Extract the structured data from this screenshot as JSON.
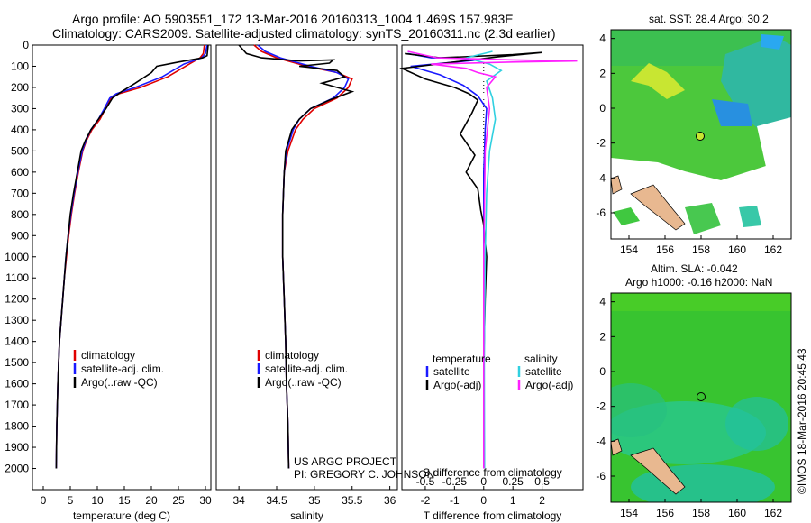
{
  "header": {
    "title_line1": "Argo profile: AO 5903551_172 13-Mar-2016 20160313_1004 1.469S 157.983E",
    "title_line2": "Climatology: CARS2009. Satellite-adjusted climatology: synTS_20160311.nc (2.3d earlier)"
  },
  "credit": {
    "line1": "US ARGO PROJECT",
    "line2": "PI: GREGORY C. JOHNSON"
  },
  "side_label": "©IMOS 18-Mar-2016 20:45:43",
  "colors": {
    "climatology": "#e00000",
    "satellite": "#1a1aff",
    "argo": "#000000",
    "sat_cyan": "#30d0e0",
    "argo_magenta": "#ff20ff"
  },
  "chart_data": [
    {
      "type": "line",
      "title": "",
      "xlabel": "temperature (deg C)",
      "ylabel": "",
      "xlim": [
        -2,
        31
      ],
      "ylim": [
        2100,
        0
      ],
      "xticks": [
        0,
        5,
        10,
        15,
        20,
        25,
        30
      ],
      "yticks": [
        0,
        100,
        200,
        300,
        400,
        500,
        600,
        700,
        800,
        900,
        1000,
        1100,
        1200,
        1300,
        1400,
        1500,
        1600,
        1700,
        1800,
        1900,
        2000
      ],
      "legend": [
        "climatology",
        "satellite-adj. clim.",
        "Argo(..raw -QC)"
      ],
      "series": [
        {
          "name": "climatology",
          "color": "#e00000",
          "points": [
            [
              29.8,
              0
            ],
            [
              29.6,
              40
            ],
            [
              29.0,
              60
            ],
            [
              27.0,
              90
            ],
            [
              23.0,
              150
            ],
            [
              18.0,
              200
            ],
            [
              14.0,
              230
            ],
            [
              12.5,
              250
            ],
            [
              11.5,
              300
            ],
            [
              10.5,
              350
            ],
            [
              9.0,
              400
            ],
            [
              8.0,
              450
            ],
            [
              7.3,
              500
            ],
            [
              6.5,
              600
            ],
            [
              5.8,
              700
            ],
            [
              5.2,
              800
            ],
            [
              4.7,
              900
            ],
            [
              4.3,
              1000
            ],
            [
              3.9,
              1100
            ],
            [
              3.6,
              1200
            ],
            [
              3.3,
              1300
            ],
            [
              3.0,
              1400
            ],
            [
              2.85,
              1500
            ],
            [
              2.7,
              1600
            ],
            [
              2.6,
              1700
            ],
            [
              2.5,
              1800
            ],
            [
              2.45,
              1900
            ],
            [
              2.4,
              2000
            ]
          ]
        },
        {
          "name": "satellite-adj. clim.",
          "color": "#1a1aff",
          "points": [
            [
              30.3,
              0
            ],
            [
              30.0,
              40
            ],
            [
              29.3,
              60
            ],
            [
              26.0,
              90
            ],
            [
              22.0,
              150
            ],
            [
              17.0,
              200
            ],
            [
              13.5,
              230
            ],
            [
              12.3,
              250
            ],
            [
              11.3,
              300
            ],
            [
              10.2,
              350
            ],
            [
              8.8,
              400
            ],
            [
              7.9,
              450
            ],
            [
              7.2,
              500
            ],
            [
              6.4,
              600
            ],
            [
              5.7,
              700
            ],
            [
              5.1,
              800
            ],
            [
              4.6,
              900
            ],
            [
              4.2,
              1000
            ],
            [
              3.9,
              1100
            ],
            [
              3.6,
              1200
            ],
            [
              3.3,
              1300
            ],
            [
              3.0,
              1400
            ],
            [
              2.85,
              1500
            ],
            [
              2.7,
              1600
            ],
            [
              2.6,
              1700
            ],
            [
              2.5,
              1800
            ],
            [
              2.45,
              1900
            ],
            [
              2.4,
              2000
            ]
          ]
        },
        {
          "name": "Argo(..raw -QC)",
          "color": "#000000",
          "points": [
            [
              30.5,
              0
            ],
            [
              30.3,
              50
            ],
            [
              29.5,
              60
            ],
            [
              25.0,
              80
            ],
            [
              21.0,
              100
            ],
            [
              20.0,
              130
            ],
            [
              17.0,
              180
            ],
            [
              14.5,
              220
            ],
            [
              12.8,
              250
            ],
            [
              11.6,
              300
            ],
            [
              10.2,
              350
            ],
            [
              8.8,
              400
            ],
            [
              7.8,
              450
            ],
            [
              7.0,
              500
            ],
            [
              6.3,
              600
            ],
            [
              5.6,
              700
            ],
            [
              5.0,
              800
            ],
            [
              4.6,
              900
            ],
            [
              4.2,
              1000
            ],
            [
              3.9,
              1100
            ],
            [
              3.6,
              1200
            ],
            [
              3.3,
              1300
            ],
            [
              3.0,
              1400
            ],
            [
              2.85,
              1500
            ],
            [
              2.7,
              1600
            ],
            [
              2.6,
              1700
            ],
            [
              2.5,
              1800
            ],
            [
              2.45,
              1900
            ],
            [
              2.4,
              2000
            ]
          ]
        }
      ]
    },
    {
      "type": "line",
      "title": "",
      "xlabel": "salinity",
      "ylabel": "",
      "xlim": [
        33.7,
        36.1
      ],
      "ylim": [
        2100,
        0
      ],
      "xticks": [
        34,
        34.5,
        35,
        35.5,
        36
      ],
      "legend": [
        "climatology",
        "satellite-adj. clim.",
        "Argo(..raw -QC)"
      ],
      "series": [
        {
          "name": "climatology",
          "color": "#e00000",
          "points": [
            [
              34.2,
              0
            ],
            [
              34.3,
              30
            ],
            [
              34.5,
              60
            ],
            [
              34.9,
              100
            ],
            [
              35.3,
              130
            ],
            [
              35.5,
              160
            ],
            [
              35.45,
              200
            ],
            [
              35.3,
              250
            ],
            [
              35.0,
              300
            ],
            [
              34.85,
              350
            ],
            [
              34.75,
              400
            ],
            [
              34.65,
              500
            ],
            [
              34.6,
              600
            ],
            [
              34.58,
              800
            ],
            [
              34.58,
              1000
            ],
            [
              34.6,
              1200
            ],
            [
              34.62,
              1400
            ],
            [
              34.63,
              1600
            ],
            [
              34.65,
              1800
            ],
            [
              34.66,
              2000
            ]
          ]
        },
        {
          "name": "satellite-adj. clim.",
          "color": "#1a1aff",
          "points": [
            [
              34.25,
              0
            ],
            [
              34.35,
              30
            ],
            [
              34.55,
              60
            ],
            [
              34.95,
              100
            ],
            [
              35.3,
              130
            ],
            [
              35.45,
              160
            ],
            [
              35.4,
              200
            ],
            [
              35.25,
              250
            ],
            [
              34.95,
              300
            ],
            [
              34.8,
              350
            ],
            [
              34.72,
              400
            ],
            [
              34.63,
              500
            ],
            [
              34.6,
              600
            ],
            [
              34.58,
              800
            ],
            [
              34.58,
              1000
            ],
            [
              34.6,
              1200
            ],
            [
              34.62,
              1400
            ],
            [
              34.63,
              1600
            ],
            [
              34.65,
              1800
            ],
            [
              34.66,
              2000
            ]
          ]
        },
        {
          "name": "Argo(..raw -QC)",
          "color": "#000000",
          "points": [
            [
              34.0,
              0
            ],
            [
              34.1,
              40
            ],
            [
              34.3,
              60
            ],
            [
              34.8,
              75
            ],
            [
              35.25,
              70
            ],
            [
              35.2,
              85
            ],
            [
              34.8,
              100
            ],
            [
              35.3,
              120
            ],
            [
              35.4,
              150
            ],
            [
              35.1,
              180
            ],
            [
              35.5,
              220
            ],
            [
              35.2,
              260
            ],
            [
              34.95,
              300
            ],
            [
              34.8,
              350
            ],
            [
              34.7,
              400
            ],
            [
              34.62,
              500
            ],
            [
              34.6,
              600
            ],
            [
              34.58,
              800
            ],
            [
              34.58,
              1000
            ],
            [
              34.6,
              1200
            ],
            [
              34.62,
              1400
            ],
            [
              34.63,
              1600
            ],
            [
              34.65,
              1800
            ],
            [
              34.66,
              2000
            ]
          ]
        }
      ]
    },
    {
      "type": "line",
      "title": "",
      "xlabel": "T difference from climatology",
      "xlabel_top": "S difference from climatology",
      "ylabel": "",
      "xlim": [
        -2.8,
        3.4
      ],
      "ylim": [
        2100,
        0
      ],
      "xticks": [
        -2,
        -1,
        0,
        1,
        2
      ],
      "xticks_s": [
        -0.5,
        -0.25,
        0,
        0.25,
        0.5
      ],
      "xticks_s_labels": [
        "-0.5",
        "-0.25",
        "0",
        "0.25",
        "0.5"
      ],
      "legend_headers": [
        "temperature",
        "salinity"
      ],
      "legend": [
        "satellite",
        "Argo(-adj)",
        "satellite",
        "Argo(-adj)"
      ],
      "series": [
        {
          "name": "T satellite",
          "color": "#1a1aff",
          "points": [
            [
              -2.6,
              40
            ],
            [
              -1.8,
              60
            ],
            [
              -1.0,
              60
            ],
            [
              -0.2,
              70
            ],
            [
              -2.5,
              100
            ],
            [
              -1.5,
              140
            ],
            [
              -0.7,
              190
            ],
            [
              -0.2,
              240
            ],
            [
              0.1,
              300
            ],
            [
              0.05,
              400
            ],
            [
              0.0,
              600
            ],
            [
              0.0,
              1000
            ],
            [
              0.0,
              1500
            ],
            [
              0.02,
              2000
            ]
          ]
        },
        {
          "name": "T Argo(-adj)",
          "color": "#000000",
          "points": [
            [
              -2.7,
              40
            ],
            [
              -1.5,
              60
            ],
            [
              1.0,
              45
            ],
            [
              2.0,
              35
            ],
            [
              0.5,
              55
            ],
            [
              -2.8,
              110
            ],
            [
              -2.0,
              160
            ],
            [
              -1.0,
              200
            ],
            [
              -0.5,
              230
            ],
            [
              -0.2,
              260
            ],
            [
              -0.4,
              320
            ],
            [
              -0.8,
              420
            ],
            [
              -0.3,
              520
            ],
            [
              -0.6,
              600
            ],
            [
              -0.2,
              680
            ],
            [
              -0.1,
              780
            ],
            [
              0.0,
              850
            ],
            [
              0.1,
              1000
            ],
            [
              0.05,
              1200
            ],
            [
              0.0,
              1500
            ],
            [
              0.02,
              2000
            ]
          ]
        },
        {
          "name": "S satellite",
          "color": "#30d0e0",
          "points": [
            [
              0.3,
              30
            ],
            [
              -0.6,
              60
            ],
            [
              0.2,
              90
            ],
            [
              0.6,
              120
            ],
            [
              0.1,
              170
            ],
            [
              0.3,
              250
            ],
            [
              0.4,
              350
            ],
            [
              0.2,
              500
            ],
            [
              0.1,
              700
            ],
            [
              0.05,
              1000
            ],
            [
              0.02,
              1500
            ],
            [
              0.03,
              2000
            ]
          ]
        },
        {
          "name": "S Argo(-adj)",
          "color": "#ff20ff",
          "points": [
            [
              -2.6,
              30
            ],
            [
              -1.6,
              60
            ],
            [
              1.0,
              70
            ],
            [
              3.2,
              75
            ],
            [
              1.0,
              80
            ],
            [
              -1.8,
              90
            ],
            [
              -0.6,
              110
            ],
            [
              -0.2,
              130
            ],
            [
              0.4,
              150
            ],
            [
              0.1,
              200
            ],
            [
              0.2,
              300
            ],
            [
              0.05,
              500
            ],
            [
              0.0,
              1000
            ],
            [
              0.0,
              1500
            ],
            [
              0.0,
              2000
            ]
          ]
        }
      ]
    },
    {
      "type": "heatmap",
      "title": "sat. SST: 28.4  Argo: 30.2",
      "xlim": [
        153,
        163
      ],
      "ylim": [
        -7.5,
        4.5
      ],
      "xticks": [
        154,
        156,
        158,
        160,
        162
      ],
      "yticks": [
        4,
        2,
        0,
        -2,
        -4,
        -6
      ],
      "argo_position": [
        157.983,
        -1.469
      ]
    },
    {
      "type": "heatmap",
      "title_line1": "Altim. SLA: -0.042",
      "title_line2": "Argo h1000: -0.16 h2000: NaN",
      "xlim": [
        153,
        163
      ],
      "ylim": [
        -7.5,
        4.5
      ],
      "xticks": [
        154,
        156,
        158,
        160,
        162
      ],
      "yticks": [
        4,
        2,
        0,
        -2,
        -4,
        -6
      ],
      "argo_position": [
        157.983,
        -1.469
      ]
    }
  ]
}
